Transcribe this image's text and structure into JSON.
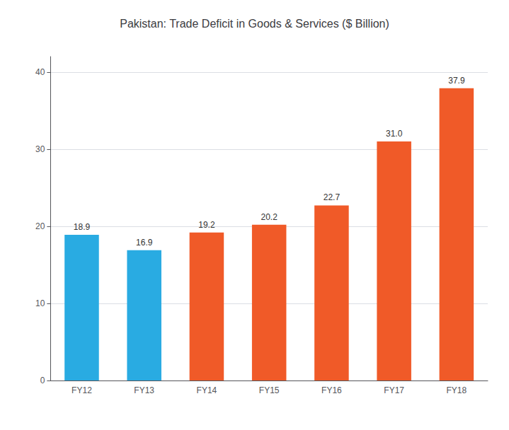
{
  "chart_data": {
    "type": "bar",
    "title": "Pakistan: Trade Deficit in Goods & Services ($ Billion)",
    "categories": [
      "FY12",
      "FY13",
      "FY14",
      "FY15",
      "FY16",
      "FY17",
      "FY18"
    ],
    "values": [
      18.9,
      16.9,
      19.2,
      20.2,
      22.7,
      31.0,
      37.9
    ],
    "value_labels": [
      "18.9",
      "16.9",
      "19.2",
      "20.2",
      "22.7",
      "31.0",
      "37.9"
    ],
    "colors": [
      "#29ABE2",
      "#29ABE2",
      "#F05A28",
      "#F05A28",
      "#F05A28",
      "#F05A28",
      "#F05A28"
    ],
    "ylim": [
      0,
      42
    ],
    "yticks": [
      0,
      10,
      20,
      30,
      40
    ],
    "grid": true,
    "data_labels": true
  }
}
